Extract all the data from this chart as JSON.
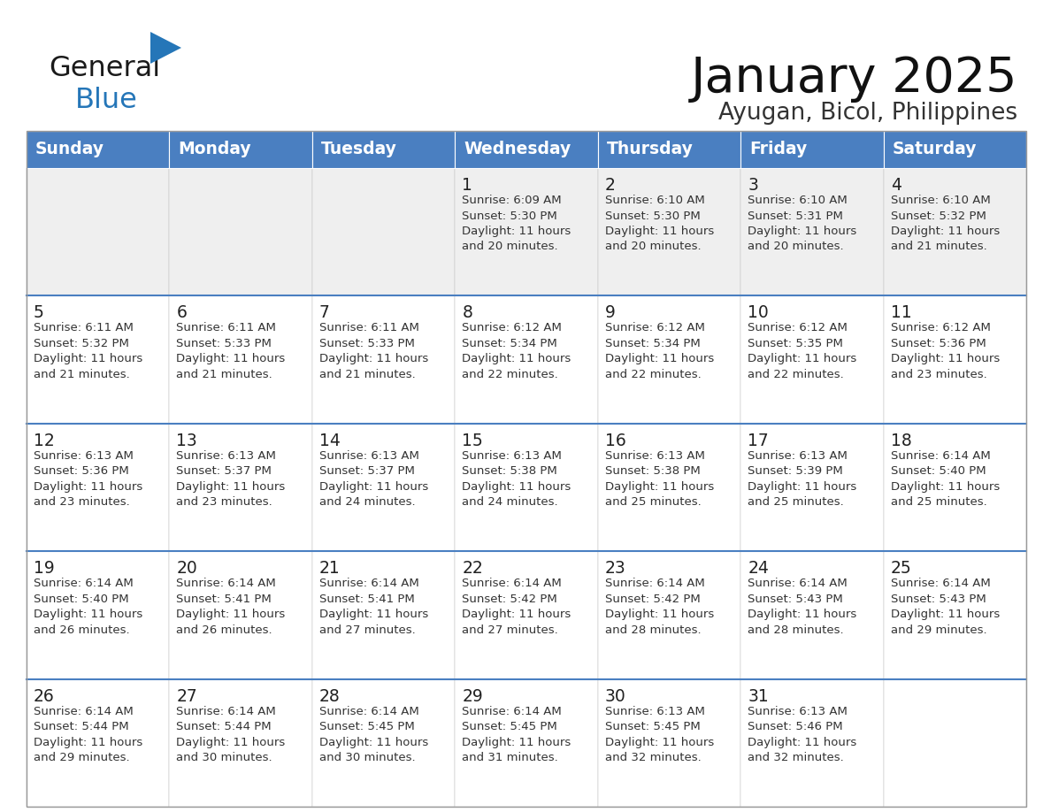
{
  "title": "January 2025",
  "subtitle": "Ayugan, Bicol, Philippines",
  "header_color": "#4a7fc1",
  "header_text_color": "#FFFFFF",
  "background_color": "#FFFFFF",
  "cell_bg_even": "#EFEFEF",
  "cell_bg_odd": "#FFFFFF",
  "day_headers": [
    "Sunday",
    "Monday",
    "Tuesday",
    "Wednesday",
    "Thursday",
    "Friday",
    "Saturday"
  ],
  "title_color": "#111111",
  "subtitle_color": "#333333",
  "day_number_color": "#222222",
  "cell_text_color": "#333333",
  "separator_color": "#4a7fc1",
  "logo_black": "#1a1a1a",
  "logo_blue": "#2576b8",
  "calendar_data": [
    [
      {
        "day": "",
        "info": ""
      },
      {
        "day": "",
        "info": ""
      },
      {
        "day": "",
        "info": ""
      },
      {
        "day": "1",
        "info": "Sunrise: 6:09 AM\nSunset: 5:30 PM\nDaylight: 11 hours\nand 20 minutes."
      },
      {
        "day": "2",
        "info": "Sunrise: 6:10 AM\nSunset: 5:30 PM\nDaylight: 11 hours\nand 20 minutes."
      },
      {
        "day": "3",
        "info": "Sunrise: 6:10 AM\nSunset: 5:31 PM\nDaylight: 11 hours\nand 20 minutes."
      },
      {
        "day": "4",
        "info": "Sunrise: 6:10 AM\nSunset: 5:32 PM\nDaylight: 11 hours\nand 21 minutes."
      }
    ],
    [
      {
        "day": "5",
        "info": "Sunrise: 6:11 AM\nSunset: 5:32 PM\nDaylight: 11 hours\nand 21 minutes."
      },
      {
        "day": "6",
        "info": "Sunrise: 6:11 AM\nSunset: 5:33 PM\nDaylight: 11 hours\nand 21 minutes."
      },
      {
        "day": "7",
        "info": "Sunrise: 6:11 AM\nSunset: 5:33 PM\nDaylight: 11 hours\nand 21 minutes."
      },
      {
        "day": "8",
        "info": "Sunrise: 6:12 AM\nSunset: 5:34 PM\nDaylight: 11 hours\nand 22 minutes."
      },
      {
        "day": "9",
        "info": "Sunrise: 6:12 AM\nSunset: 5:34 PM\nDaylight: 11 hours\nand 22 minutes."
      },
      {
        "day": "10",
        "info": "Sunrise: 6:12 AM\nSunset: 5:35 PM\nDaylight: 11 hours\nand 22 minutes."
      },
      {
        "day": "11",
        "info": "Sunrise: 6:12 AM\nSunset: 5:36 PM\nDaylight: 11 hours\nand 23 minutes."
      }
    ],
    [
      {
        "day": "12",
        "info": "Sunrise: 6:13 AM\nSunset: 5:36 PM\nDaylight: 11 hours\nand 23 minutes."
      },
      {
        "day": "13",
        "info": "Sunrise: 6:13 AM\nSunset: 5:37 PM\nDaylight: 11 hours\nand 23 minutes."
      },
      {
        "day": "14",
        "info": "Sunrise: 6:13 AM\nSunset: 5:37 PM\nDaylight: 11 hours\nand 24 minutes."
      },
      {
        "day": "15",
        "info": "Sunrise: 6:13 AM\nSunset: 5:38 PM\nDaylight: 11 hours\nand 24 minutes."
      },
      {
        "day": "16",
        "info": "Sunrise: 6:13 AM\nSunset: 5:38 PM\nDaylight: 11 hours\nand 25 minutes."
      },
      {
        "day": "17",
        "info": "Sunrise: 6:13 AM\nSunset: 5:39 PM\nDaylight: 11 hours\nand 25 minutes."
      },
      {
        "day": "18",
        "info": "Sunrise: 6:14 AM\nSunset: 5:40 PM\nDaylight: 11 hours\nand 25 minutes."
      }
    ],
    [
      {
        "day": "19",
        "info": "Sunrise: 6:14 AM\nSunset: 5:40 PM\nDaylight: 11 hours\nand 26 minutes."
      },
      {
        "day": "20",
        "info": "Sunrise: 6:14 AM\nSunset: 5:41 PM\nDaylight: 11 hours\nand 26 minutes."
      },
      {
        "day": "21",
        "info": "Sunrise: 6:14 AM\nSunset: 5:41 PM\nDaylight: 11 hours\nand 27 minutes."
      },
      {
        "day": "22",
        "info": "Sunrise: 6:14 AM\nSunset: 5:42 PM\nDaylight: 11 hours\nand 27 minutes."
      },
      {
        "day": "23",
        "info": "Sunrise: 6:14 AM\nSunset: 5:42 PM\nDaylight: 11 hours\nand 28 minutes."
      },
      {
        "day": "24",
        "info": "Sunrise: 6:14 AM\nSunset: 5:43 PM\nDaylight: 11 hours\nand 28 minutes."
      },
      {
        "day": "25",
        "info": "Sunrise: 6:14 AM\nSunset: 5:43 PM\nDaylight: 11 hours\nand 29 minutes."
      }
    ],
    [
      {
        "day": "26",
        "info": "Sunrise: 6:14 AM\nSunset: 5:44 PM\nDaylight: 11 hours\nand 29 minutes."
      },
      {
        "day": "27",
        "info": "Sunrise: 6:14 AM\nSunset: 5:44 PM\nDaylight: 11 hours\nand 30 minutes."
      },
      {
        "day": "28",
        "info": "Sunrise: 6:14 AM\nSunset: 5:45 PM\nDaylight: 11 hours\nand 30 minutes."
      },
      {
        "day": "29",
        "info": "Sunrise: 6:14 AM\nSunset: 5:45 PM\nDaylight: 11 hours\nand 31 minutes."
      },
      {
        "day": "30",
        "info": "Sunrise: 6:13 AM\nSunset: 5:45 PM\nDaylight: 11 hours\nand 32 minutes."
      },
      {
        "day": "31",
        "info": "Sunrise: 6:13 AM\nSunset: 5:46 PM\nDaylight: 11 hours\nand 32 minutes."
      },
      {
        "day": "",
        "info": ""
      }
    ]
  ]
}
